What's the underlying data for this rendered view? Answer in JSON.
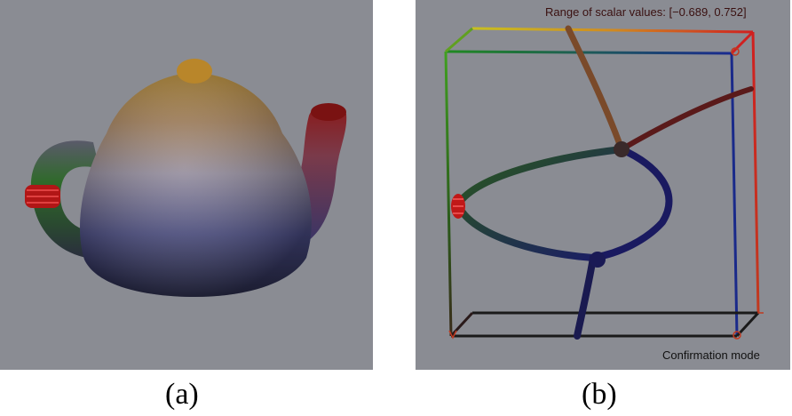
{
  "panels": [
    {
      "caption": "(a)",
      "subject": "teapot-mesh"
    },
    {
      "caption": "(b)",
      "subject": "reeb-graph-bounding-box"
    }
  ],
  "overlay": {
    "range_label": "Range of scalar values: [−0.689,  0.752]",
    "mode_label": "Confirmation mode"
  },
  "colors": {
    "background": "#8a8c93",
    "high": "#cc2020",
    "mid_high": "#c8a020",
    "mid": "#2a8a20",
    "low": "#1a1a70"
  }
}
